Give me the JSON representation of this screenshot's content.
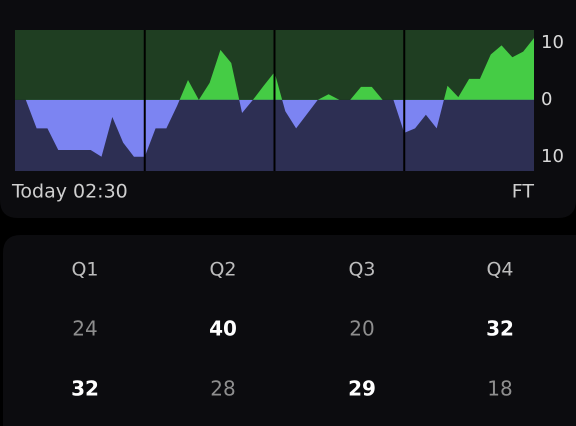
{
  "chart_data": {
    "type": "area",
    "x": [
      0,
      1,
      2,
      3,
      4,
      5,
      6,
      7,
      8,
      9,
      10,
      11,
      12,
      13,
      14,
      15,
      16,
      17,
      18,
      19,
      20,
      21,
      22,
      23,
      24,
      25,
      26,
      27,
      28,
      29,
      30,
      31,
      32,
      33,
      34,
      35,
      36,
      37,
      38,
      39,
      40,
      41,
      42,
      43,
      44,
      45,
      46,
      47,
      48
    ],
    "values": [
      0,
      0,
      -5,
      -5,
      -8.8,
      -8.8,
      -8.8,
      -8.8,
      -10,
      -3,
      -7.5,
      -10,
      -10,
      -5,
      -5,
      -1,
      3.5,
      0,
      3,
      8.8,
      6.5,
      -2.3,
      0,
      2.5,
      4.9,
      -2,
      -5,
      -2.5,
      0,
      1,
      0,
      0,
      2.3,
      2.3,
      0,
      0,
      -5.8,
      -5,
      -2.6,
      -5,
      2.5,
      0.5,
      3.7,
      3.7,
      8,
      9.6,
      7.5,
      8.5,
      10.9
    ],
    "xlim": [
      0,
      48
    ],
    "ylim": [
      -12.5,
      12.3
    ],
    "yticks": [
      10,
      0,
      {
        "value": -10,
        "label": "10"
      }
    ],
    "positive_color": "#45cc45",
    "negative_color": "#7c84f2",
    "positive_background": "#1f3e22",
    "negative_background": "#2d2f53",
    "start_label": "Today 02:30",
    "end_label": "FT"
  },
  "table": {
    "header": [
      "Q1",
      "Q2",
      "Q3",
      "Q4"
    ],
    "rows": [
      [
        24,
        40,
        20,
        32
      ],
      [
        32,
        28,
        29,
        18
      ]
    ]
  }
}
